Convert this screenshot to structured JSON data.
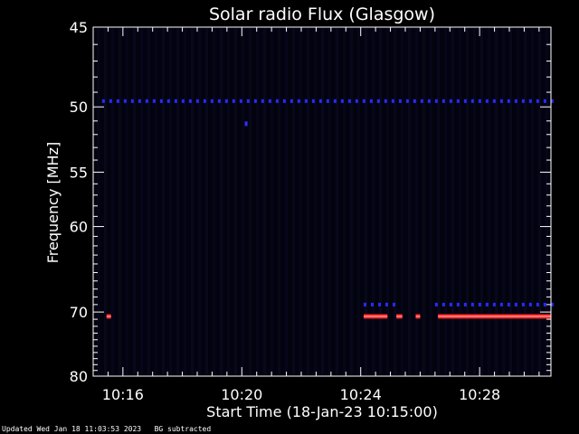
{
  "chart_data": {
    "type": "heatmap",
    "title": "Solar radio Flux (Glasgow)",
    "xlabel": "Start Time (18-Jan-23 10:15:00)",
    "ylabel": "Frequency [MHz]",
    "x_start_minutes": 0,
    "xlim_minutes": [
      0,
      15.4
    ],
    "x_ticks": [
      {
        "label": "10:16",
        "minutes": 1
      },
      {
        "label": "10:20",
        "minutes": 5
      },
      {
        "label": "10:24",
        "minutes": 9
      },
      {
        "label": "10:28",
        "minutes": 13
      }
    ],
    "y_scale": "reciprocal",
    "ylim": [
      45,
      80
    ],
    "y_ticks": [
      45,
      50,
      55,
      60,
      70,
      80
    ],
    "background_color": "#03030f",
    "signals": [
      {
        "freq_mhz": 49.6,
        "color": "#2a2aff",
        "style": "dashed",
        "from_minutes": 0.3,
        "to_minutes": 15.4
      },
      {
        "freq_mhz": 51.2,
        "color": "#3030ff",
        "style": "dot",
        "from_minutes": 5.1,
        "to_minutes": 5.2
      },
      {
        "freq_mhz": 70.6,
        "color": "#ff2020",
        "style": "solid",
        "from_minutes": 0.45,
        "to_minutes": 0.6
      },
      {
        "freq_mhz": 70.6,
        "color": "#ff2020",
        "style": "solid",
        "from_minutes": 9.1,
        "to_minutes": 9.9
      },
      {
        "freq_mhz": 70.6,
        "color": "#ff2020",
        "style": "solid",
        "from_minutes": 10.2,
        "to_minutes": 10.4
      },
      {
        "freq_mhz": 70.6,
        "color": "#ff2020",
        "style": "solid",
        "from_minutes": 10.85,
        "to_minutes": 11.0
      },
      {
        "freq_mhz": 70.6,
        "color": "#ff2020",
        "style": "solid",
        "from_minutes": 11.6,
        "to_minutes": 15.4
      },
      {
        "freq_mhz": 69.0,
        "color": "#2a2aff",
        "style": "dashed",
        "from_minutes": 9.1,
        "to_minutes": 10.2
      },
      {
        "freq_mhz": 69.0,
        "color": "#2a2aff",
        "style": "dashed",
        "from_minutes": 11.5,
        "to_minutes": 15.4
      }
    ]
  },
  "footer": {
    "updated": "Updated Wed Jan 18 11:03:53 2023",
    "note": "BG subtracted"
  }
}
